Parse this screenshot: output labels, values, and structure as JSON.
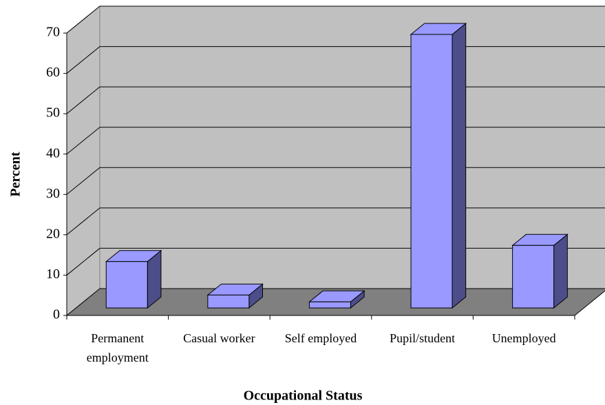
{
  "chart_data": {
    "type": "bar3d",
    "x_label": "Occupational Status",
    "y_label": "Percent",
    "categories": [
      "Permanent employment",
      "Casual worker",
      "Self employed",
      "Pupil/student",
      "Unemployed"
    ],
    "values": [
      11.5,
      3.2,
      1.5,
      67.8,
      15.5
    ],
    "color": "#9999ff",
    "ylim": [
      0,
      70
    ],
    "yticks": [
      0,
      10,
      20,
      30,
      40,
      50,
      60,
      70
    ],
    "grid": true
  }
}
